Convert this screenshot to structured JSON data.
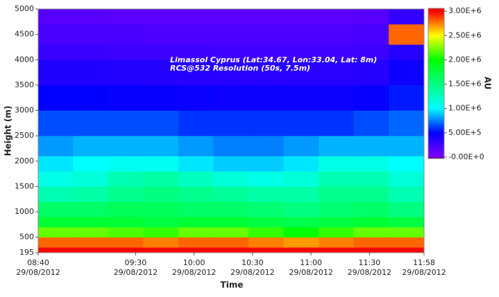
{
  "chart_data": {
    "type": "heatmap",
    "annotations": [
      "Limassol Cyprus (Lat:34.67, Lon:33.04, Lat: 8m)",
      "RCS@532 Resolution (50s, 7.5m)"
    ],
    "x_label": "Time",
    "y_label": "Height (m)",
    "colorbar_label": "AU",
    "x_bins": [
      "2012-08-29T08:40",
      "2012-08-29T08:58",
      "2012-08-29T09:16",
      "2012-08-29T09:34",
      "2012-08-29T09:52",
      "2012-08-29T10:10",
      "2012-08-29T10:28",
      "2012-08-29T10:46",
      "2012-08-29T11:04",
      "2012-08-29T11:22",
      "2012-08-29T11:40",
      "2012-08-29T11:58"
    ],
    "y_bins": [
      195,
      300,
      500,
      700,
      900,
      1200,
      1500,
      1800,
      2100,
      2500,
      3000,
      3500,
      4000,
      4300,
      4700,
      5000
    ],
    "z": [
      [
        3000000,
        3000000,
        3000000,
        3000000,
        3000000,
        3000000,
        3000000,
        3000000,
        3000000,
        3000000,
        3000000
      ],
      [
        2800000,
        2800000,
        2800000,
        2750000,
        2800000,
        2800000,
        2750000,
        2700000,
        2750000,
        2800000,
        2800000
      ],
      [
        2200000,
        2200000,
        2150000,
        2100000,
        2200000,
        2200000,
        2100000,
        2000000,
        2100000,
        2200000,
        2200000
      ],
      [
        1800000,
        1800000,
        1800000,
        1750000,
        1800000,
        1800000,
        1750000,
        1700000,
        1750000,
        1800000,
        1750000
      ],
      [
        1600000,
        1600000,
        1650000,
        1650000,
        1600000,
        1600000,
        1550000,
        1500000,
        1550000,
        1600000,
        1500000
      ],
      [
        1300000,
        1350000,
        1450000,
        1500000,
        1450000,
        1400000,
        1350000,
        1350000,
        1450000,
        1450000,
        1300000
      ],
      [
        1100000,
        1150000,
        1300000,
        1350000,
        1250000,
        1150000,
        1100000,
        1150000,
        1300000,
        1300000,
        1150000
      ],
      [
        950000,
        1000000,
        1050000,
        1050000,
        950000,
        900000,
        900000,
        950000,
        1100000,
        1100000,
        1000000
      ],
      [
        800000,
        850000,
        850000,
        850000,
        800000,
        750000,
        750000,
        800000,
        850000,
        850000,
        850000
      ],
      [
        650000,
        650000,
        650000,
        650000,
        600000,
        600000,
        600000,
        600000,
        600000,
        650000,
        700000
      ],
      [
        500000,
        500000,
        480000,
        480000,
        460000,
        450000,
        450000,
        450000,
        450000,
        480000,
        550000
      ],
      [
        380000,
        380000,
        370000,
        360000,
        350000,
        340000,
        340000,
        340000,
        340000,
        360000,
        450000
      ],
      [
        280000,
        280000,
        270000,
        260000,
        260000,
        250000,
        250000,
        250000,
        250000,
        270000,
        350000
      ],
      [
        220000,
        220000,
        210000,
        200000,
        200000,
        200000,
        200000,
        200000,
        200000,
        220000,
        2800000
      ],
      [
        160000,
        160000,
        150000,
        150000,
        150000,
        150000,
        150000,
        150000,
        150000,
        160000,
        300000
      ]
    ],
    "zlim": [
      -30000,
      3060000
    ],
    "colorscale": [
      [
        -30000,
        "#300000"
      ],
      [
        0,
        "#8000ff"
      ],
      [
        500000,
        "#0000ff"
      ],
      [
        1000000,
        "#00ffff"
      ],
      [
        1500000,
        "#00ff80"
      ],
      [
        2000000,
        "#00ff00"
      ],
      [
        2500000,
        "#ffff00"
      ],
      [
        3000000,
        "#ff0000"
      ]
    ],
    "zticks": [
      {
        "value": 0,
        "label": "-0.00E+0"
      },
      {
        "value": 500000,
        "label": "5.00E+5"
      },
      {
        "value": 1000000,
        "label": "1.00E+6"
      },
      {
        "value": 1500000,
        "label": "1.50E+6"
      },
      {
        "value": 2000000,
        "label": "2.00E+6"
      },
      {
        "value": 2500000,
        "label": "2.50E+6"
      },
      {
        "value": 3000000,
        "label": "3.00E+6"
      }
    ],
    "xlim": [
      "2012-08-29T08:40",
      "2012-08-29T11:58"
    ],
    "xticks": [
      {
        "value": "2012-08-29T08:40",
        "label": [
          "08:40",
          "29/08/2012"
        ]
      },
      {
        "value": "2012-08-29T09:30",
        "label": [
          "09:30",
          "29/08/2012"
        ]
      },
      {
        "value": "2012-08-29T10:00",
        "label": [
          "10:00",
          "29/08/2012"
        ]
      },
      {
        "value": "2012-08-29T10:30",
        "label": [
          "10:30",
          "29/08/2012"
        ]
      },
      {
        "value": "2012-08-29T11:00",
        "label": [
          "11:00",
          "29/08/2012"
        ]
      },
      {
        "value": "2012-08-29T11:30",
        "label": [
          "11:30",
          "29/08/2012"
        ]
      },
      {
        "value": "2012-08-29T11:58",
        "label": [
          "11:58",
          "29/08/2012"
        ]
      }
    ],
    "ylim": [
      195,
      5000
    ],
    "yticks": [
      195,
      500,
      1000,
      1500,
      2000,
      2500,
      3000,
      3500,
      4000,
      4500,
      5000
    ]
  }
}
